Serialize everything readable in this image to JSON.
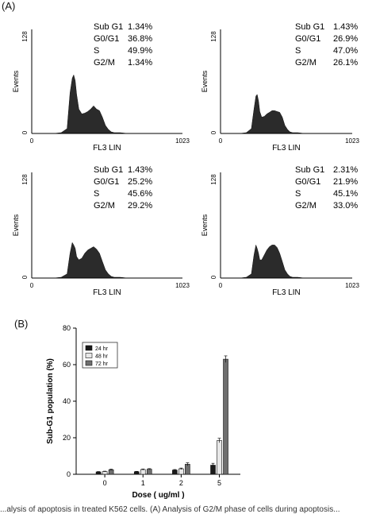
{
  "panel_a_label": "(A)",
  "panel_b_label": "(B)",
  "caption": "...alysis of apoptosis in treated K562 cells. (A) Analysis of G2/M phase of cells during apoptosis...",
  "chart_data": [
    {
      "type": "area",
      "panel": "A1",
      "xlabel": "FL3 LIN",
      "ylabel": "Events",
      "xlim": [
        0,
        1023
      ],
      "ylim": [
        0,
        128
      ],
      "x_ticks": [
        "0",
        "1023"
      ],
      "y_ticks": [
        "0",
        "128"
      ],
      "stats": [
        {
          "label": "Sub G1",
          "value": "1.34%"
        },
        {
          "label": "G0/G1",
          "value": "36.8%"
        },
        {
          "label": "S",
          "value": "49.9%"
        },
        {
          "label": "G2/M",
          "value": "1.34%"
        }
      ],
      "x": [
        0,
        150,
        200,
        240,
        260,
        275,
        285,
        295,
        305,
        320,
        340,
        360,
        380,
        400,
        420,
        440,
        460,
        480,
        500,
        520,
        540,
        560,
        600,
        650,
        1023
      ],
      "y": [
        0,
        0,
        1,
        6,
        50,
        68,
        72,
        65,
        48,
        30,
        24,
        25,
        27,
        30,
        34,
        30,
        28,
        20,
        10,
        5,
        2,
        1,
        1,
        0,
        0
      ]
    },
    {
      "type": "area",
      "panel": "A2",
      "xlabel": "FL3 LIN",
      "ylabel": "Events",
      "xlim": [
        0,
        1023
      ],
      "ylim": [
        0,
        128
      ],
      "x_ticks": [
        "0",
        "1023"
      ],
      "y_ticks": [
        "0",
        "128"
      ],
      "stats": [
        {
          "label": "Sub G1",
          "value": "1.43%"
        },
        {
          "label": "G0/G1",
          "value": "26.9%"
        },
        {
          "label": "S",
          "value": "47.0%"
        },
        {
          "label": "G2/M",
          "value": "26.1%"
        }
      ],
      "x": [
        0,
        150,
        200,
        240,
        260,
        275,
        285,
        295,
        305,
        320,
        340,
        360,
        380,
        400,
        420,
        440,
        460,
        480,
        500,
        520,
        540,
        560,
        600,
        650,
        1023
      ],
      "y": [
        0,
        0,
        1,
        6,
        30,
        46,
        48,
        40,
        27,
        20,
        21,
        24,
        26,
        28,
        28,
        27,
        26,
        20,
        10,
        5,
        2,
        1,
        1,
        0,
        0
      ]
    },
    {
      "type": "area",
      "panel": "A3",
      "xlabel": "FL3 LIN",
      "ylabel": "Events",
      "xlim": [
        0,
        1023
      ],
      "ylim": [
        0,
        128
      ],
      "x_ticks": [
        "0",
        "1023"
      ],
      "y_ticks": [
        "0",
        "128"
      ],
      "stats": [
        {
          "label": "Sub G1",
          "value": "1.43%"
        },
        {
          "label": "G0/G1",
          "value": "25.2%"
        },
        {
          "label": "S",
          "value": "45.6%"
        },
        {
          "label": "G2/M",
          "value": "29.2%"
        }
      ],
      "x": [
        0,
        150,
        200,
        240,
        260,
        275,
        285,
        295,
        305,
        320,
        340,
        360,
        380,
        400,
        420,
        440,
        460,
        480,
        500,
        520,
        540,
        560,
        600,
        650,
        1023
      ],
      "y": [
        0,
        0,
        1,
        5,
        30,
        43,
        40,
        36,
        26,
        22,
        24,
        30,
        34,
        36,
        38,
        35,
        30,
        20,
        10,
        5,
        2,
        1,
        1,
        0,
        0
      ]
    },
    {
      "type": "area",
      "panel": "A4",
      "xlabel": "FL3 LIN",
      "ylabel": "Events",
      "xlim": [
        0,
        1023
      ],
      "ylim": [
        0,
        128
      ],
      "x_ticks": [
        "0",
        "1023"
      ],
      "y_ticks": [
        "0",
        "128"
      ],
      "stats": [
        {
          "label": "Sub G1",
          "value": "2.31%"
        },
        {
          "label": "G0/G1",
          "value": "21.9%"
        },
        {
          "label": "S",
          "value": "45.1%"
        },
        {
          "label": "G2/M",
          "value": "33.0%"
        }
      ],
      "x": [
        0,
        150,
        200,
        240,
        260,
        275,
        285,
        295,
        305,
        320,
        340,
        360,
        380,
        400,
        420,
        440,
        460,
        480,
        500,
        520,
        540,
        560,
        600,
        650,
        1023
      ],
      "y": [
        0,
        0,
        1,
        5,
        28,
        40,
        36,
        30,
        22,
        22,
        28,
        34,
        38,
        40,
        40,
        37,
        30,
        20,
        10,
        5,
        2,
        1,
        1,
        0,
        0
      ]
    },
    {
      "type": "bar",
      "panel": "B",
      "xlabel": "Dose ( ug/ml )",
      "ylabel": "Sub-G1 population (%)",
      "categories": [
        "0",
        "1",
        "2",
        "5"
      ],
      "ylim": [
        0,
        80
      ],
      "y_ticks": [
        "0",
        "20",
        "40",
        "60",
        "80"
      ],
      "legend_position": "top-left",
      "series": [
        {
          "name": "24 hr",
          "color": "#1a1a1a",
          "values": [
            1.3,
            1.4,
            2.3,
            5.0
          ],
          "errors": [
            0.2,
            0.2,
            0.3,
            1.0
          ]
        },
        {
          "name": "48 hr",
          "color": "#e8e8e8",
          "values": [
            1.5,
            2.6,
            3.0,
            18.5
          ],
          "errors": [
            0.2,
            0.3,
            0.4,
            1.2
          ]
        },
        {
          "name": "72 hr",
          "color": "#6e6e6e",
          "values": [
            2.5,
            2.8,
            5.5,
            63.0
          ],
          "errors": [
            0.3,
            0.3,
            0.8,
            1.8
          ]
        }
      ]
    }
  ]
}
